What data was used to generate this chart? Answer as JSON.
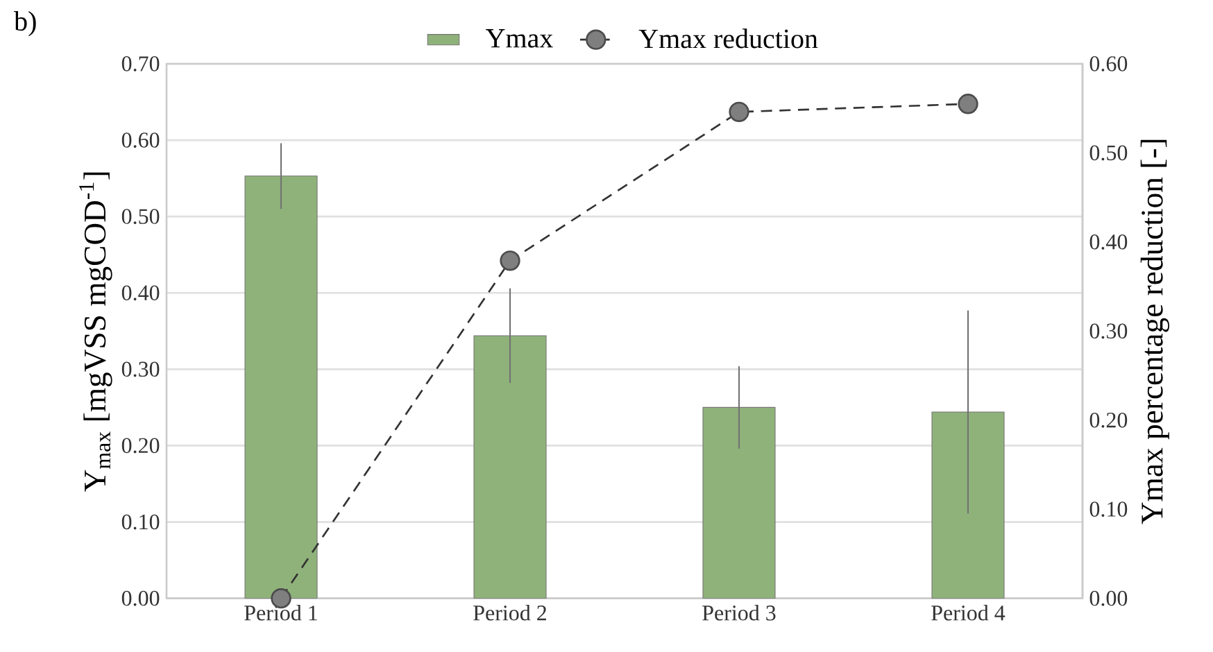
{
  "chart_data": {
    "type": "bar",
    "title": "b)",
    "categories": [
      "Period 1",
      "Period 2",
      "Period 3",
      "Period 4"
    ],
    "series": [
      {
        "name": "Ymax",
        "color": "#8fb27a",
        "values": [
          0.553,
          0.344,
          0.25,
          0.244
        ],
        "errors": [
          0.043,
          0.062,
          0.054,
          0.133
        ]
      },
      {
        "name": "Ymax reduction",
        "type": "line",
        "axis": "y2",
        "color": "#7f7f7f",
        "values": [
          0,
          0.379,
          0.546,
          0.555
        ],
        "marker": "circle",
        "line_style": "dashed"
      }
    ],
    "ylabel": "Y$_{max}$ [mgVSS mgCOD$^{-1}$]",
    "y2label": "Ymax percentage reduction [-]",
    "ylim": [
      0,
      0.7
    ],
    "yticks": [
      {
        "value": 0,
        "label": "0.00"
      },
      {
        "value": 0.1,
        "label": "0.10"
      },
      {
        "value": 0.2,
        "label": "0.20"
      },
      {
        "value": 0.3,
        "label": "0.30"
      },
      {
        "value": 0.4,
        "label": "0.40"
      },
      {
        "value": 0.5,
        "label": "0.50"
      },
      {
        "value": 0.6,
        "label": "0.60"
      },
      {
        "value": 0.7,
        "label": "0.70"
      }
    ],
    "y2lim": [
      0,
      0.6
    ],
    "y2ticks": [
      {
        "value": 0,
        "label": "0.00"
      },
      {
        "value": 0.1,
        "label": "0.10"
      },
      {
        "value": 0.2,
        "label": "0.20"
      },
      {
        "value": 0.3,
        "label": "0.30"
      },
      {
        "value": 0.4,
        "label": "0.40"
      },
      {
        "value": 0.5,
        "label": "0.50"
      },
      {
        "value": 0.6,
        "label": "0.60"
      }
    ],
    "grid": "y",
    "legend": "top"
  }
}
